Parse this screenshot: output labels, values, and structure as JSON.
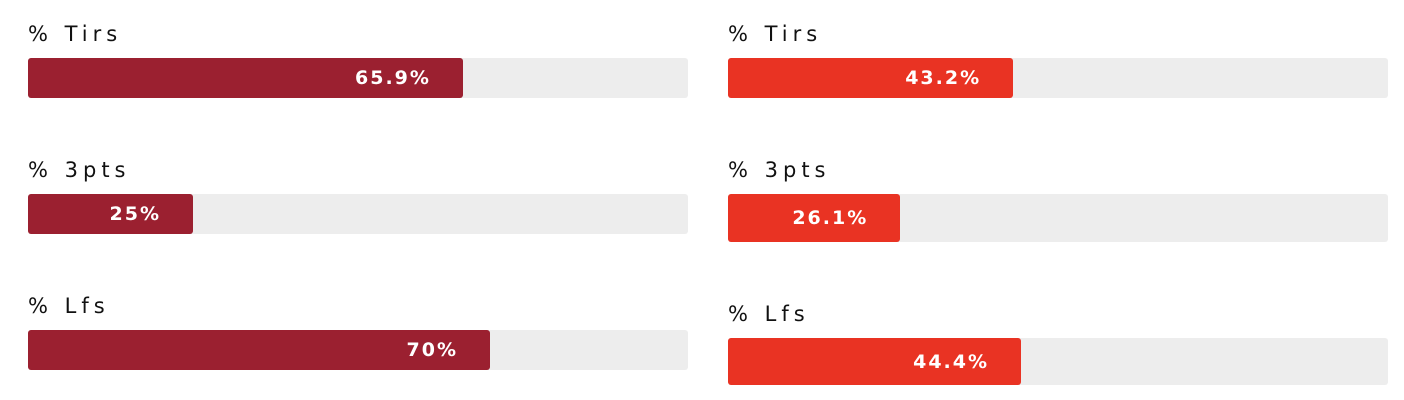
{
  "chart_data": [
    {
      "type": "bar",
      "orientation": "horizontal",
      "xlim": [
        0,
        100
      ],
      "color": "#9b2030",
      "track_color": "#ededed",
      "categories": [
        "% Tirs",
        "% 3pts",
        "% Lfs"
      ],
      "values": [
        65.9,
        25,
        70
      ],
      "labels": [
        "65.9%",
        "25%",
        "70%"
      ]
    },
    {
      "type": "bar",
      "orientation": "horizontal",
      "xlim": [
        0,
        100
      ],
      "color": "#e93323",
      "track_color": "#ededed",
      "categories": [
        "% Tirs",
        "% 3pts",
        "% Lfs"
      ],
      "values": [
        43.2,
        26.1,
        44.4
      ],
      "labels": [
        "43.2%",
        "26.1%",
        "44.4%"
      ]
    }
  ]
}
